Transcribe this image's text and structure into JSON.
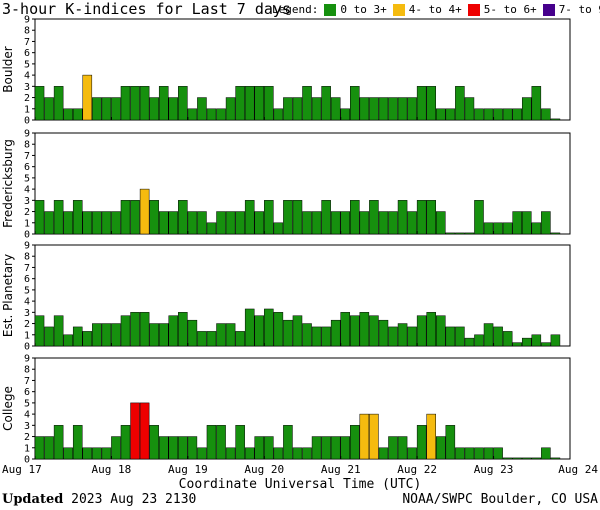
{
  "title": "3-hour K-indices for Last 7 days",
  "legend": {
    "label": "Legend:",
    "items": [
      {
        "label": "0 to 3+",
        "color": "#16900e"
      },
      {
        "label": "4- to 4+",
        "color": "#f5bb0f"
      },
      {
        "label": "5- to 6+",
        "color": "#ee0000"
      },
      {
        "label": "7- to 9",
        "color": "#46008c"
      }
    ]
  },
  "xlabel": "Coordinate Universal Time (UTC)",
  "footer": {
    "updated_label": "Updated",
    "updated_value": "2023 Aug 23 2130",
    "source": "NOAA/SWPC Boulder, CO USA"
  },
  "chart_data": {
    "type": "bar",
    "x_tick_labels": [
      "Aug 17",
      "Aug 18",
      "Aug 19",
      "Aug 20",
      "Aug 21",
      "Aug 22",
      "Aug 23",
      "Aug 24"
    ],
    "y_ticks": [
      0,
      1,
      2,
      3,
      4,
      5,
      6,
      7,
      8,
      9
    ],
    "ylim": [
      0,
      9
    ],
    "intervals_per_day": 8,
    "days": 7,
    "panels": [
      {
        "name": "Boulder",
        "values": [
          3,
          2,
          3,
          1,
          1,
          4,
          2,
          2,
          2,
          3,
          3,
          3,
          2,
          3,
          2,
          3,
          1,
          2,
          1,
          1,
          2,
          3,
          3,
          3,
          3,
          1,
          2,
          2,
          3,
          2,
          3,
          2,
          1,
          3,
          2,
          2,
          2,
          2,
          2,
          2,
          3,
          3,
          1,
          1,
          3,
          2,
          1,
          1,
          1,
          1,
          1,
          2,
          3,
          1,
          0.1
        ]
      },
      {
        "name": "Fredericksburg",
        "values": [
          3,
          2,
          3,
          2,
          3,
          2,
          2,
          2,
          2,
          3,
          3,
          4,
          3,
          2,
          2,
          3,
          2,
          2,
          1,
          2,
          2,
          2,
          3,
          2,
          3,
          1,
          3,
          3,
          2,
          2,
          3,
          2,
          2,
          3,
          2,
          3,
          2,
          2,
          3,
          2,
          3,
          3,
          2,
          0.1,
          0.1,
          0.1,
          3,
          1,
          1,
          1,
          2,
          2,
          1,
          2,
          0.1
        ]
      },
      {
        "name": "Est. Planetary",
        "values": [
          2.7,
          1.7,
          2.7,
          1,
          1.7,
          1.3,
          2,
          2,
          2,
          2.7,
          3,
          3,
          2,
          2,
          2.7,
          3,
          2.3,
          1.3,
          1.3,
          2,
          2,
          1.3,
          3.3,
          2.7,
          3.3,
          3,
          2.3,
          2.7,
          2,
          1.7,
          1.7,
          2.3,
          3,
          2.7,
          3,
          2.7,
          2.3,
          1.7,
          2,
          1.7,
          2.7,
          3,
          2.7,
          1.7,
          1.7,
          0.7,
          1,
          2,
          1.7,
          1.3,
          0.3,
          0.7,
          1,
          0.3,
          1
        ]
      },
      {
        "name": "College",
        "values": [
          2,
          2,
          3,
          1,
          3,
          1,
          1,
          1,
          2,
          3,
          5,
          5,
          3,
          2,
          2,
          2,
          2,
          1,
          3,
          3,
          1,
          3,
          1,
          2,
          2,
          1,
          3,
          1,
          1,
          2,
          2,
          2,
          2,
          3,
          4,
          4,
          1,
          2,
          2,
          1,
          3,
          4,
          2,
          3,
          1,
          1,
          1,
          1,
          1,
          0.1,
          0.1,
          0.1,
          0.1,
          1,
          0.1
        ]
      }
    ]
  }
}
